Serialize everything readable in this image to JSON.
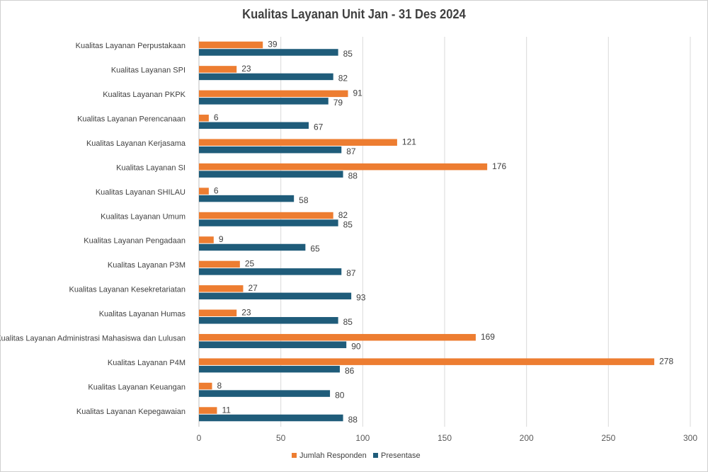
{
  "chart_data": {
    "type": "bar",
    "orientation": "horizontal",
    "title": "Kualitas Layanan Unit  Jan - 31 Des 2024",
    "categories": [
      "Kualitas Layanan Perpustakaan",
      "Kualitas Layanan SPI",
      "Kualitas Layanan PKPK",
      "Kualitas Layanan Perencanaan",
      "Kualitas Layanan Kerjasama",
      "Kualitas Layanan SI",
      "Kualitas Layanan SHILAU",
      "Kualitas Layanan Umum",
      "Kualitas Layanan Pengadaan",
      "Kualitas Layanan P3M",
      "Kualitas Layanan Kesekretariatan",
      "Kualitas Layanan Humas",
      "Kualitas Layanan Administrasi Mahasiswa dan Lulusan",
      "Kualitas Layanan P4M",
      "Kualitas Layanan Keuangan",
      "Kualitas Layanan Kepegawaian"
    ],
    "series": [
      {
        "name": "Jumlah Responden",
        "color": "#ED7D31",
        "values": [
          39,
          23,
          91,
          6,
          121,
          176,
          6,
          82,
          9,
          25,
          27,
          23,
          169,
          278,
          8,
          11
        ]
      },
      {
        "name": "Presentase",
        "color": "#1F5C7A",
        "values": [
          85,
          82,
          79,
          67,
          87,
          88,
          58,
          85,
          65,
          87,
          93,
          85,
          90,
          86,
          80,
          88
        ]
      }
    ],
    "xlim": [
      0,
      300
    ],
    "xticks": [
      "0",
      "50",
      "100",
      "150",
      "200",
      "250",
      "300"
    ],
    "grid": true,
    "legend_position": "bottom"
  }
}
